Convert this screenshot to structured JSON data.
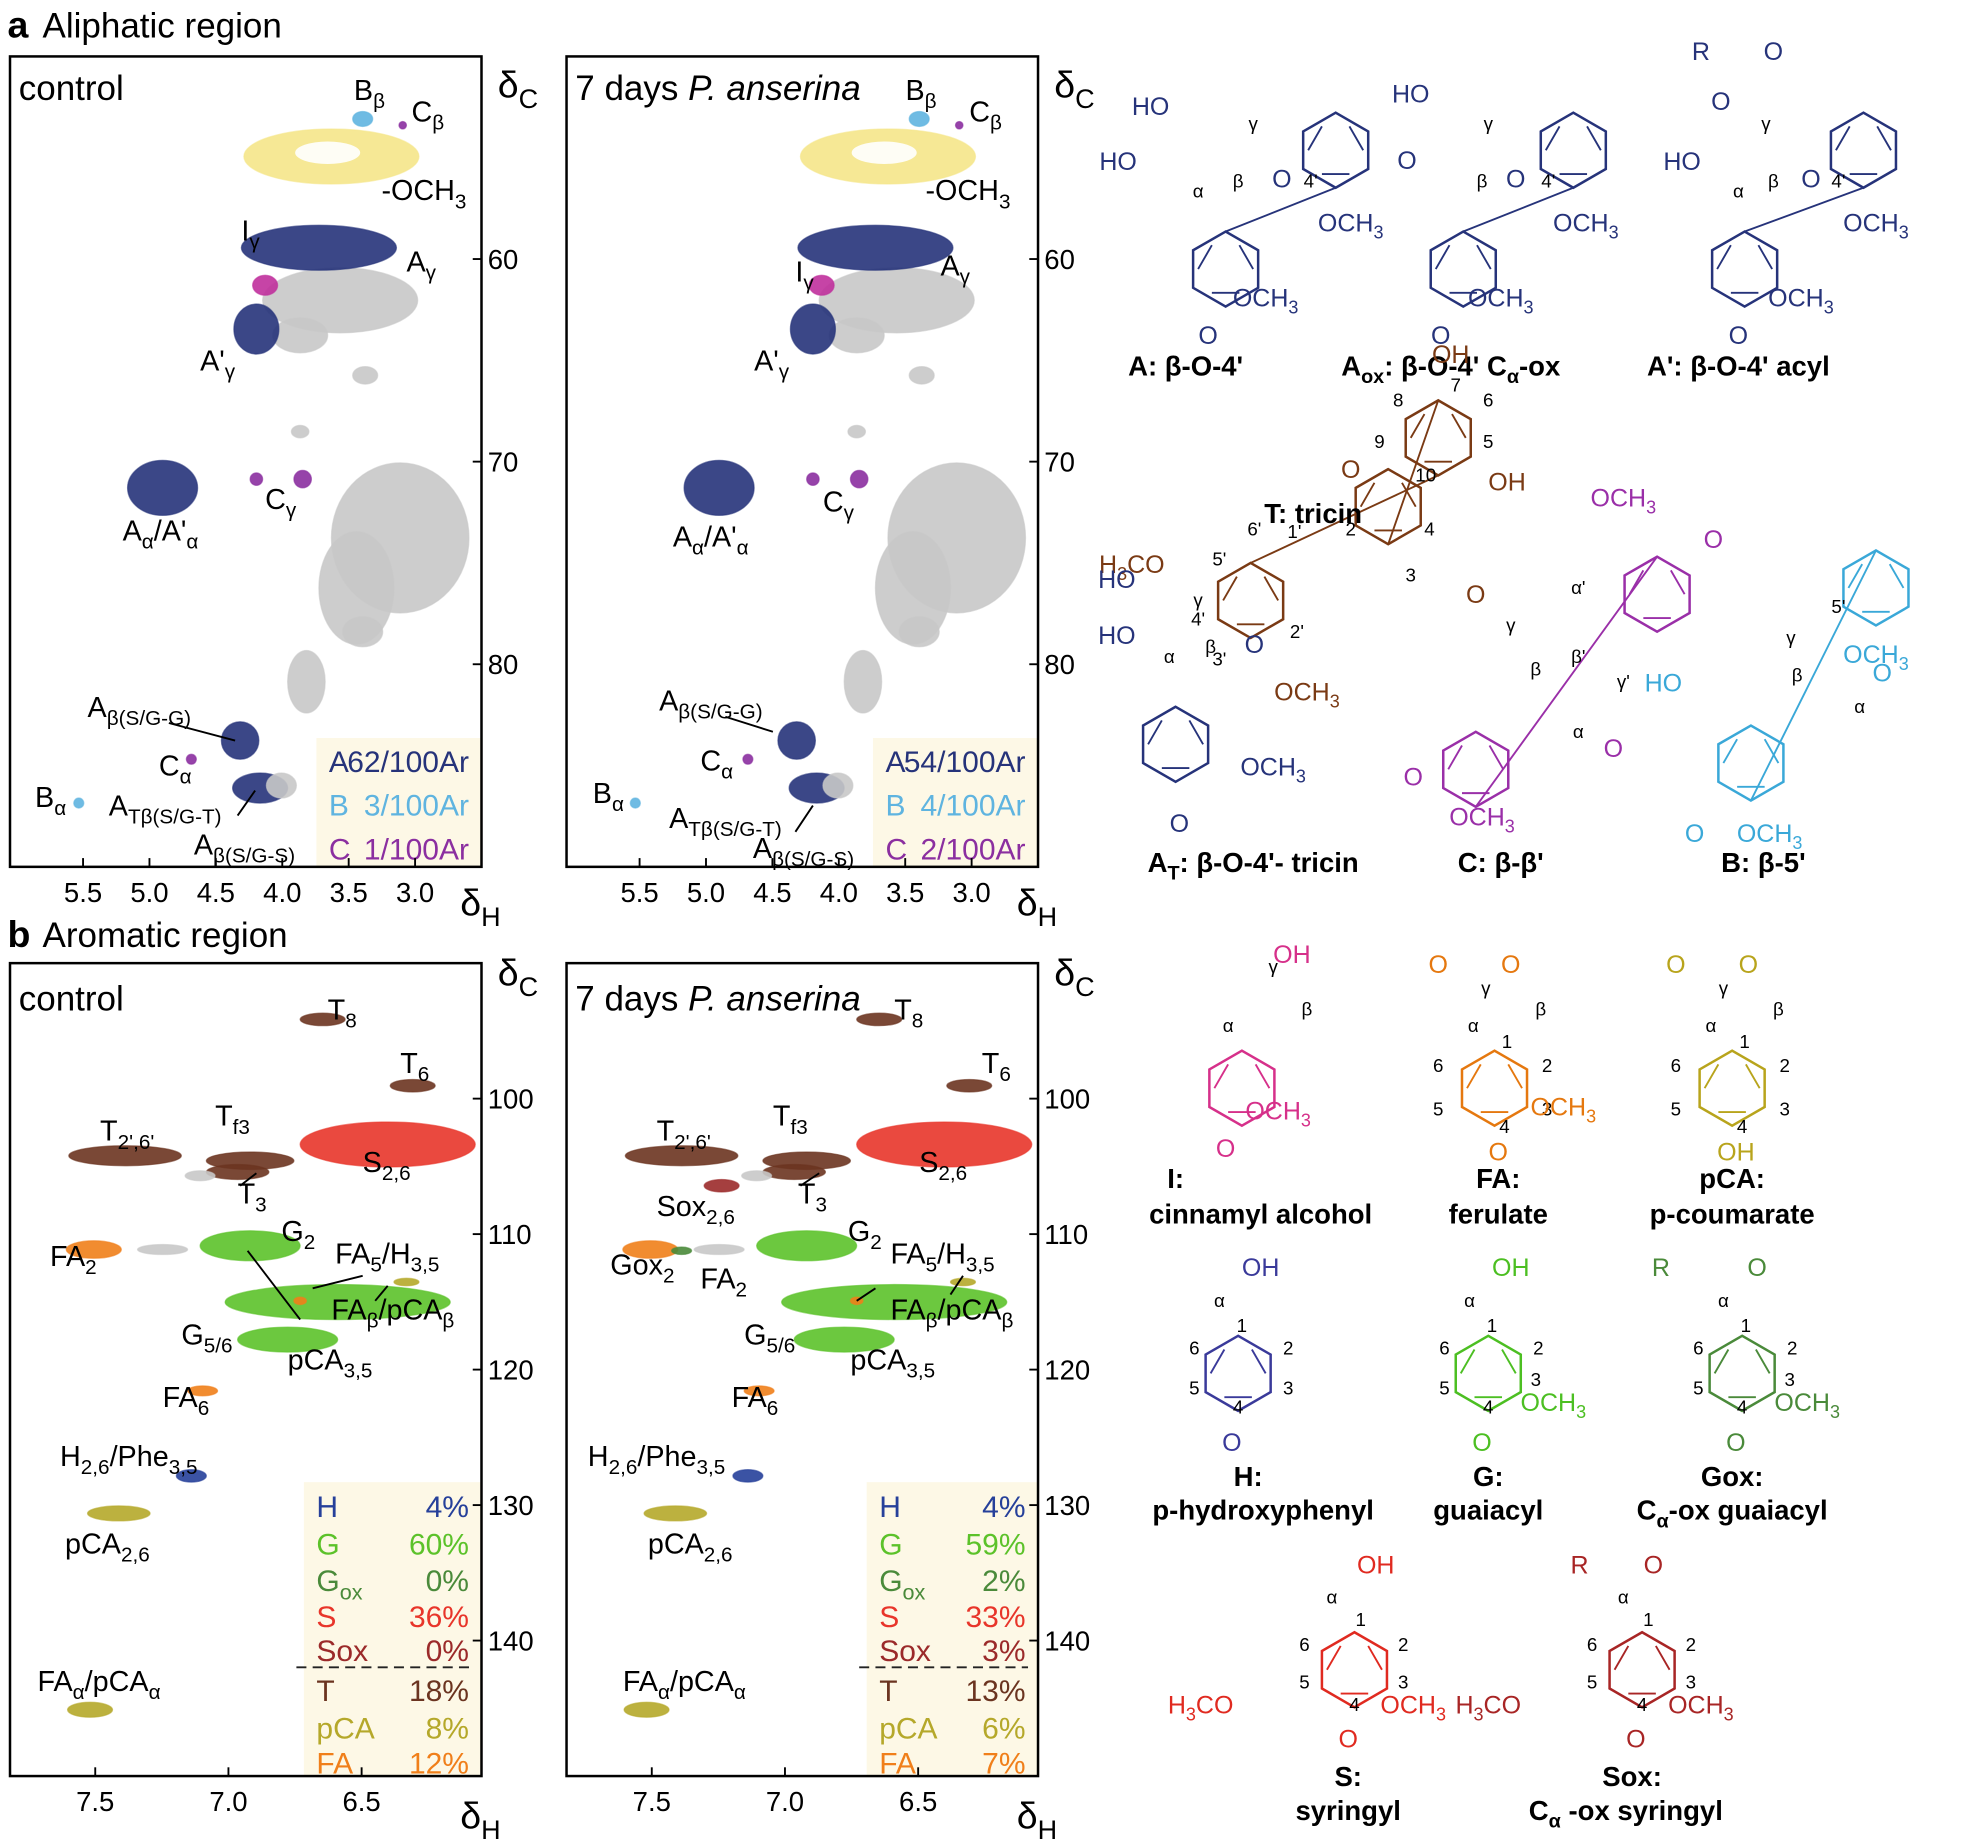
{
  "regions": [
    {
      "letter": "a",
      "title": "Aliphatic region",
      "xlim": [
        6.05,
        2.5
      ],
      "ylim": [
        50,
        90
      ],
      "xticks": [
        5.5,
        {
          "value": 5,
          "label": "5.0"
        },
        4.5,
        {
          "value": 4,
          "label": "4.0"
        },
        3.5,
        {
          "value": 3,
          "label": "3.0"
        }
      ],
      "yticks": [
        60,
        70,
        80
      ],
      "xlabel": [
        "δ",
        "H"
      ],
      "ylabel": [
        "δ",
        "C"
      ],
      "spectra": [
        {
          "title": "control",
          "labels": [
            [
              "B",
              "β"
            ],
            [
              "C",
              "β"
            ],
            [
              "-OCH",
              "3"
            ],
            [
              "A",
              "γ"
            ],
            [
              "I",
              "γ"
            ],
            [
              "A'",
              "γ"
            ],
            [
              "A",
              "α",
              "/A'",
              "α"
            ],
            [
              "C",
              "γ"
            ],
            [
              "A",
              "β(S/G-G)"
            ],
            [
              "C",
              "α"
            ],
            [
              "B",
              "α"
            ],
            [
              "A",
              "Tβ(S/G-T)"
            ],
            [
              "A",
              "β(S/G-S)"
            ]
          ],
          "legend": [
            {
              "name": "A",
              "value": "62/100Ar",
              "color": "#26337a"
            },
            {
              "name": "B",
              "value": "3/100Ar",
              "color": "#5fb4e0"
            },
            {
              "name": "C",
              "value": "1/100Ar",
              "color": "#8b2fa0"
            }
          ]
        },
        {
          "title": {
            "text": "7 days ",
            "italic": "P. anserina"
          },
          "labels": [
            [
              "B",
              "β"
            ],
            [
              "C",
              "β"
            ],
            [
              "-OCH",
              "3"
            ],
            [
              "A",
              "γ"
            ],
            [
              "I",
              "γ"
            ],
            [
              "A'",
              "γ"
            ],
            [
              "A",
              "α",
              "/A'",
              "α"
            ],
            [
              "C",
              "γ"
            ],
            [
              "A",
              "β(S/G-G)"
            ],
            [
              "C",
              "α"
            ],
            [
              "B",
              "α"
            ],
            [
              "A",
              "Tβ(S/G-T)"
            ],
            [
              "A",
              "β(S/G-S)"
            ]
          ],
          "legend": [
            {
              "name": "A",
              "value": "54/100Ar",
              "color": "#26337a"
            },
            {
              "name": "B",
              "value": "4/100Ar",
              "color": "#5fb4e0"
            },
            {
              "name": "C",
              "value": "2/100Ar",
              "color": "#8b2fa0"
            }
          ]
        }
      ]
    },
    {
      "letter": "b",
      "title": "Aromatic region",
      "xlim": [
        7.82,
        6.05
      ],
      "ylim": [
        90,
        150
      ],
      "xticks": [
        7.5,
        {
          "value": 7,
          "label": "7.0"
        },
        6.5
      ],
      "yticks": [
        100,
        110,
        120,
        130,
        140
      ],
      "xlabel": [
        "δ",
        "H"
      ],
      "ylabel": [
        "δ",
        "C"
      ],
      "spectra": [
        {
          "title": "control",
          "labels": [
            [
              "T",
              "8"
            ],
            [
              "T",
              "6"
            ],
            [
              "T",
              "2',6'"
            ],
            [
              "T",
              "f3"
            ],
            [
              "S",
              "2,6"
            ],
            [
              "T",
              "3"
            ],
            [
              "FA",
              "2"
            ],
            [
              "G",
              "2"
            ],
            [
              "FA",
              "5",
              "/H",
              "3,5"
            ],
            [
              "FA",
              "β",
              "/pCA",
              "β"
            ],
            [
              "G",
              "5/6"
            ],
            [
              "pCA",
              "3,5"
            ],
            [
              "FA",
              "6"
            ],
            [
              "H",
              "2,6",
              "/Phe",
              "3,5"
            ],
            [
              "pCA",
              "2,6"
            ],
            [
              "FA",
              "α",
              "/pCA",
              "α"
            ]
          ],
          "legend": [
            {
              "name": "H",
              "value": "4%",
              "color": "#26409a"
            },
            {
              "name": "G",
              "value": "60%",
              "color": "#5cc22a"
            },
            {
              "name": [
                "G",
                "ox"
              ],
              "value": "0%",
              "color": "#4a8a3a"
            },
            {
              "name": "S",
              "value": "36%",
              "color": "#e8352a"
            },
            {
              "name": "Sox",
              "value": "0%",
              "color": "#9b2a2a"
            },
            {
              "name": "T",
              "value": "18%",
              "color": "#6b3420"
            },
            {
              "name": "pCA",
              "value": "8%",
              "color": "#b5a82a"
            },
            {
              "name": "FA",
              "value": "12%",
              "color": "#f07f1a"
            }
          ]
        },
        {
          "title": {
            "text": "7 days ",
            "italic": "P. anserina"
          },
          "labels": [
            [
              "T",
              "8"
            ],
            [
              "T",
              "6"
            ],
            [
              "T",
              "2',6'"
            ],
            [
              "T",
              "f3"
            ],
            [
              "S",
              "2,6"
            ],
            [
              "T",
              "3"
            ],
            [
              "Sox",
              "2,6"
            ],
            [
              "G",
              "2"
            ],
            [
              "Gox",
              "2"
            ],
            [
              "FA",
              "2"
            ],
            [
              "FA",
              "5",
              "/H",
              "3,5"
            ],
            [
              "FA",
              "β",
              "/pCA",
              "β"
            ],
            [
              "G",
              "5/6"
            ],
            [
              "pCA",
              "3,5"
            ],
            [
              "FA",
              "6"
            ],
            [
              "H",
              "2,6",
              "/Phe",
              "3,5"
            ],
            [
              "pCA",
              "2,6"
            ],
            [
              "FA",
              "α",
              "/pCA",
              "α"
            ]
          ],
          "legend": [
            {
              "name": "H",
              "value": "4%",
              "color": "#26409a"
            },
            {
              "name": "G",
              "value": "59%",
              "color": "#5cc22a"
            },
            {
              "name": [
                "G",
                "ox"
              ],
              "value": "2%",
              "color": "#4a8a3a"
            },
            {
              "name": "S",
              "value": "33%",
              "color": "#e8352a"
            },
            {
              "name": "Sox",
              "value": "3%",
              "color": "#9b2a2a"
            },
            {
              "name": "T",
              "value": "13%",
              "color": "#6b3420"
            },
            {
              "name": "pCA",
              "value": "6%",
              "color": "#b5a82a"
            },
            {
              "name": "FA",
              "value": "7%",
              "color": "#f07f1a"
            }
          ]
        }
      ]
    }
  ],
  "structures": [
    {
      "name": "A: β-O-4'",
      "color": "#26337a",
      "atoms": [
        "HO",
        "γ",
        "HO",
        "α",
        "β",
        "O",
        "4'",
        [
          "OCH",
          "3"
        ],
        [
          "OCH",
          "3"
        ],
        "O"
      ]
    },
    {
      "name": [
        "A",
        "ox",
        ": β-O-4' C",
        "α",
        "-ox"
      ],
      "color": "#26337a",
      "atoms": [
        "HO",
        "γ",
        "O",
        "β",
        "O",
        "4'",
        [
          "OCH",
          "3"
        ],
        [
          "OCH",
          "3"
        ],
        "O"
      ]
    },
    {
      "name": "A': β-O-4' acyl",
      "color": "#26337a",
      "atoms": [
        "R",
        "O",
        "O",
        "γ",
        "HO",
        "α",
        "β",
        "O",
        "4'",
        [
          "OCH",
          "3"
        ],
        [
          "OCH",
          "3"
        ],
        "O"
      ]
    },
    {
      "name": "T: tricin",
      "color": "#7a3a14",
      "atoms": [
        "OH",
        "7",
        "8",
        "6",
        "9",
        "5",
        "OH",
        "O",
        "10",
        "2",
        "4",
        "O",
        "3",
        "1'",
        "6'",
        "5'",
        [
          "H",
          "3",
          "CO"
        ],
        "4'",
        "3'",
        "2'",
        [
          "OCH",
          "3"
        ]
      ]
    },
    {
      "name": [
        "A",
        "T",
        ": β-O-4'- tricin"
      ],
      "color": "#26337a",
      "atoms": [
        "HO",
        "γ",
        "HO",
        "α",
        "β",
        "O",
        [
          "OCH",
          "3"
        ],
        "O"
      ]
    },
    {
      "name": "C: β-β'",
      "color": "#9a2fa8",
      "atoms": [
        [
          "OCH",
          "3"
        ],
        "O",
        "α'",
        "γ",
        "β'",
        "β",
        "γ'",
        "α",
        "O",
        "O",
        [
          "OCH",
          "3"
        ]
      ]
    },
    {
      "name": "B: β-5'",
      "color": "#3aa8d8",
      "atoms": [
        [
          "OCH",
          "3"
        ],
        "5'",
        "γ",
        "β",
        "HO",
        "α",
        "O",
        "O",
        [
          "OCH",
          "3"
        ]
      ]
    },
    {
      "name": "I:",
      "subtitle": "cinnamyl alcohol",
      "color": "#d6308a",
      "atoms": [
        "OH",
        "γ",
        "β",
        "α",
        [
          "OCH",
          "3"
        ],
        "O"
      ]
    },
    {
      "name": "FA:",
      "subtitle": "ferulate",
      "color": "#e5780f",
      "atoms": [
        "O",
        "γ",
        "O",
        "β",
        "α",
        "1",
        "6",
        "2",
        "5",
        "3",
        "4",
        [
          "OCH",
          "3"
        ],
        "O"
      ]
    },
    {
      "name": "pCA:",
      "subtitle": "p-coumarate",
      "color": "#b8a41c",
      "atoms": [
        "O",
        "γ",
        "O",
        "β",
        "α",
        "1",
        "6",
        "2",
        "5",
        "3",
        "4",
        "OH"
      ]
    },
    {
      "name": "H:",
      "subtitle": "p-hydroxyphenyl",
      "color": "#3a3a9a",
      "atoms": [
        "OH",
        "α",
        "1",
        "6",
        "2",
        "5",
        "3",
        "4",
        "O"
      ]
    },
    {
      "name": "G:",
      "subtitle": "guaiacyl",
      "color": "#4cbf22",
      "atoms": [
        "OH",
        "α",
        "1",
        "6",
        "2",
        "5",
        "3",
        [
          "OCH",
          "3"
        ],
        "4",
        "O"
      ]
    },
    {
      "name": "Gox:",
      "subtitle": [
        "C",
        "α",
        "-ox guaiacyl"
      ],
      "color": "#4a8a3a",
      "atoms": [
        "R",
        "O",
        "α",
        "1",
        "6",
        "2",
        "5",
        "3",
        [
          "OCH",
          "3"
        ],
        "4",
        "O"
      ]
    },
    {
      "name": "S:",
      "subtitle": "syringyl",
      "color": "#e02a20",
      "atoms": [
        "OH",
        "α",
        "1",
        "6",
        "2",
        "5",
        "3",
        [
          "H",
          "3",
          "CO"
        ],
        [
          "OCH",
          "3"
        ],
        "4",
        "O"
      ]
    },
    {
      "name": "Sox:",
      "subtitle": [
        "C",
        "α",
        " -ox syringyl"
      ],
      "color": "#a82525",
      "atoms": [
        "R",
        "O",
        "α",
        "1",
        "6",
        "2",
        "5",
        "3",
        [
          "H",
          "3",
          "CO"
        ],
        [
          "OCH",
          "3"
        ],
        "4",
        "O"
      ]
    }
  ]
}
